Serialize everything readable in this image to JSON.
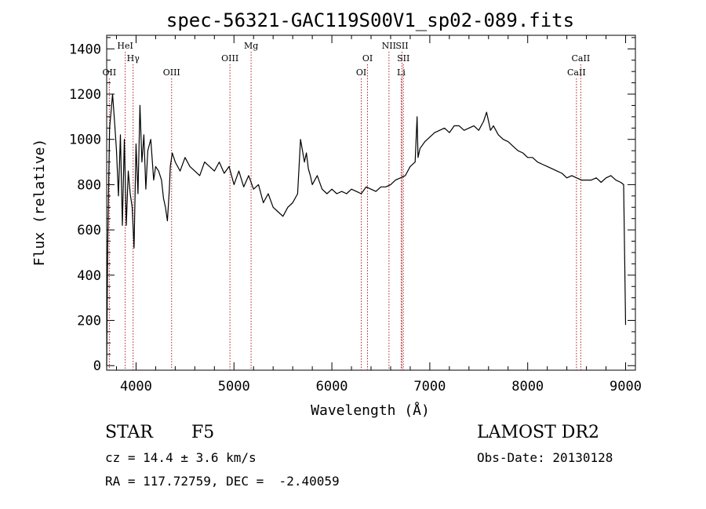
{
  "chart_data": {
    "type": "line",
    "title": "spec-56321-GAC119S00V1_sp02-089.fits",
    "xlabel": "Wavelength (Å)",
    "ylabel": "Flux (relative)",
    "xlim": [
      3700,
      9100
    ],
    "ylim": [
      -20,
      1460
    ],
    "x_ticks": [
      4000,
      5000,
      6000,
      7000,
      8000,
      9000
    ],
    "x_tick_labels": [
      "4000",
      "5000",
      "6000",
      "7000",
      "8000",
      "9000"
    ],
    "y_ticks": [
      0,
      200,
      400,
      600,
      800,
      1000,
      1200,
      1400
    ],
    "y_tick_labels": [
      "0",
      "200",
      "400",
      "600",
      "800",
      "1000",
      "1200",
      "1400"
    ],
    "grid": false,
    "series": [
      {
        "x": [
          3700,
          3710,
          3720,
          3730,
          3740,
          3760,
          3780,
          3800,
          3820,
          3840,
          3860,
          3880,
          3900,
          3920,
          3940,
          3960,
          3980,
          4000,
          4020,
          4040,
          4060,
          4080,
          4100,
          4120,
          4150,
          4180,
          4200,
          4230,
          4260,
          4280,
          4300,
          4320,
          4340,
          4350,
          4370,
          4400,
          4450,
          4500,
          4550,
          4600,
          4650,
          4700,
          4750,
          4800,
          4850,
          4900,
          4950,
          5000,
          5050,
          5100,
          5150,
          5200,
          5250,
          5300,
          5350,
          5400,
          5450,
          5500,
          5550,
          5600,
          5650,
          5680,
          5700,
          5720,
          5740,
          5760,
          5780,
          5800,
          5850,
          5900,
          5950,
          6000,
          6050,
          6100,
          6150,
          6200,
          6250,
          6300,
          6350,
          6400,
          6450,
          6500,
          6550,
          6600,
          6650,
          6700,
          6750,
          6800,
          6850,
          6870,
          6880,
          6900,
          6950,
          7000,
          7050,
          7100,
          7150,
          7200,
          7250,
          7300,
          7350,
          7400,
          7450,
          7500,
          7550,
          7580,
          7600,
          7620,
          7650,
          7700,
          7750,
          7800,
          7850,
          7900,
          7950,
          8000,
          8050,
          8100,
          8150,
          8200,
          8250,
          8300,
          8350,
          8400,
          8450,
          8500,
          8550,
          8600,
          8650,
          8700,
          8750,
          8800,
          8850,
          8900,
          8950,
          8980,
          9000
        ],
        "y": [
          0,
          500,
          800,
          1050,
          1100,
          1200,
          1080,
          950,
          750,
          1020,
          620,
          1000,
          620,
          860,
          760,
          700,
          520,
          980,
          760,
          1150,
          900,
          1020,
          780,
          950,
          1000,
          820,
          880,
          860,
          820,
          740,
          700,
          640,
          780,
          880,
          940,
          900,
          860,
          920,
          880,
          860,
          840,
          900,
          880,
          860,
          900,
          850,
          880,
          800,
          860,
          790,
          840,
          780,
          800,
          720,
          760,
          700,
          680,
          660,
          700,
          720,
          760,
          1000,
          950,
          900,
          940,
          870,
          840,
          800,
          840,
          780,
          760,
          780,
          760,
          770,
          760,
          780,
          770,
          760,
          790,
          780,
          770,
          790,
          790,
          800,
          820,
          830,
          840,
          880,
          900,
          1100,
          920,
          960,
          990,
          1010,
          1030,
          1040,
          1050,
          1030,
          1060,
          1060,
          1040,
          1050,
          1060,
          1040,
          1080,
          1120,
          1080,
          1040,
          1060,
          1020,
          1000,
          990,
          970,
          950,
          940,
          920,
          920,
          900,
          890,
          880,
          870,
          860,
          850,
          830,
          840,
          830,
          820,
          820,
          820,
          830,
          810,
          830,
          840,
          820,
          810,
          800,
          180
        ]
      }
    ],
    "line_markers": [
      {
        "wavelength": 3727,
        "label": "OII",
        "row": 3
      },
      {
        "wavelength": 3889,
        "label": "HeI",
        "row": 1
      },
      {
        "wavelength": 3970,
        "label": "Hγ",
        "row": 2
      },
      {
        "wavelength": 4363,
        "label": "OIII",
        "row": 3
      },
      {
        "wavelength": 4959,
        "label": "OIII",
        "row": 2
      },
      {
        "wavelength": 5175,
        "label": "Mg",
        "row": 1
      },
      {
        "wavelength": 6300,
        "label": "OI",
        "row": 3
      },
      {
        "wavelength": 6364,
        "label": "OI",
        "row": 2
      },
      {
        "wavelength": 6583,
        "label": "NII",
        "row": 1
      },
      {
        "wavelength": 6716,
        "label": "SII",
        "row": 1
      },
      {
        "wavelength": 6730,
        "label": "SII",
        "row": 2
      },
      {
        "wavelength": 6708,
        "label": "Li",
        "row": 3
      },
      {
        "wavelength": 8542,
        "label": "CaII",
        "row": 2
      },
      {
        "wavelength": 8498,
        "label": "CaII",
        "row": 3
      }
    ]
  },
  "info": {
    "object_class": "STAR",
    "subclass": "F5",
    "survey": "LAMOST DR2",
    "cz": "cz = 14.4 ± 3.6 km/s",
    "obs_date": "Obs-Date: 20130128",
    "coords": "RA = 117.72759, DEC =  -2.40059"
  },
  "colors": {
    "spectrum": "#000000",
    "marker_line": "#b02020",
    "axis": "#000000"
  }
}
